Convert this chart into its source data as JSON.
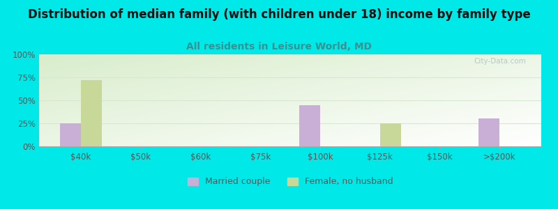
{
  "title": "Distribution of median family (with children under 18) income by family type",
  "subtitle": "All residents in Leisure World, MD",
  "categories": [
    "$40k",
    "$50k",
    "$60k",
    "$75k",
    "$100k",
    "$125k",
    "$150k",
    ">$200k"
  ],
  "married_couple": [
    25,
    0,
    0,
    0,
    45,
    0,
    0,
    30
  ],
  "female_no_husband": [
    72,
    0,
    0,
    0,
    0,
    25,
    0,
    0
  ],
  "married_color": "#c9aed6",
  "female_color": "#c8d898",
  "background_color": "#00e8e8",
  "title_fontsize": 12,
  "subtitle_fontsize": 10,
  "subtitle_color": "#3a9090",
  "yticks": [
    0,
    25,
    50,
    75,
    100
  ],
  "ylabels": [
    "0%",
    "25%",
    "50%",
    "75%",
    "100%"
  ],
  "bar_width": 0.35,
  "watermark": "City-Data.com",
  "watermark_color": "#b0c0c0",
  "grid_color": "#d8e8d0",
  "chart_left_color": "#d8ecc8",
  "chart_right_color": "#f8fdf8"
}
